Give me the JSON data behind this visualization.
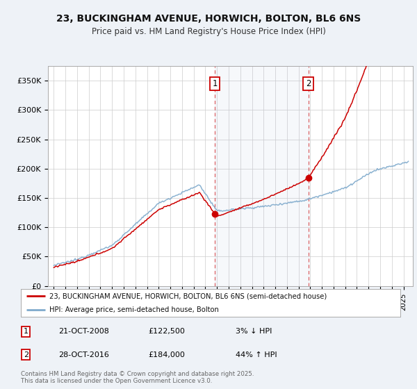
{
  "title_line1": "23, BUCKINGHAM AVENUE, HORWICH, BOLTON, BL6 6NS",
  "title_line2": "Price paid vs. HM Land Registry's House Price Index (HPI)",
  "legend_line1": "23, BUCKINGHAM AVENUE, HORWICH, BOLTON, BL6 6NS (semi-detached house)",
  "legend_line2": "HPI: Average price, semi-detached house, Bolton",
  "annotation1_date": "21-OCT-2008",
  "annotation1_price": "£122,500",
  "annotation1_hpi": "3% ↓ HPI",
  "annotation1_year": 2008.8,
  "annotation1_value": 122500,
  "annotation2_date": "28-OCT-2016",
  "annotation2_price": "£184,000",
  "annotation2_hpi": "44% ↑ HPI",
  "annotation2_year": 2016.8,
  "annotation2_value": 184000,
  "ytick_labels": [
    "£0",
    "£50K",
    "£100K",
    "£150K",
    "£200K",
    "£250K",
    "£300K",
    "£350K"
  ],
  "ytick_values": [
    0,
    50000,
    100000,
    150000,
    200000,
    250000,
    300000,
    350000
  ],
  "ylim_max": 375000,
  "xlim_start": 1994.5,
  "xlim_end": 2025.8,
  "background_color": "#eef2f7",
  "plot_bg_color": "#ffffff",
  "red_color": "#cc0000",
  "blue_color": "#7faacc",
  "grid_color": "#cccccc",
  "footer_text": "Contains HM Land Registry data © Crown copyright and database right 2025.\nThis data is licensed under the Open Government Licence v3.0."
}
